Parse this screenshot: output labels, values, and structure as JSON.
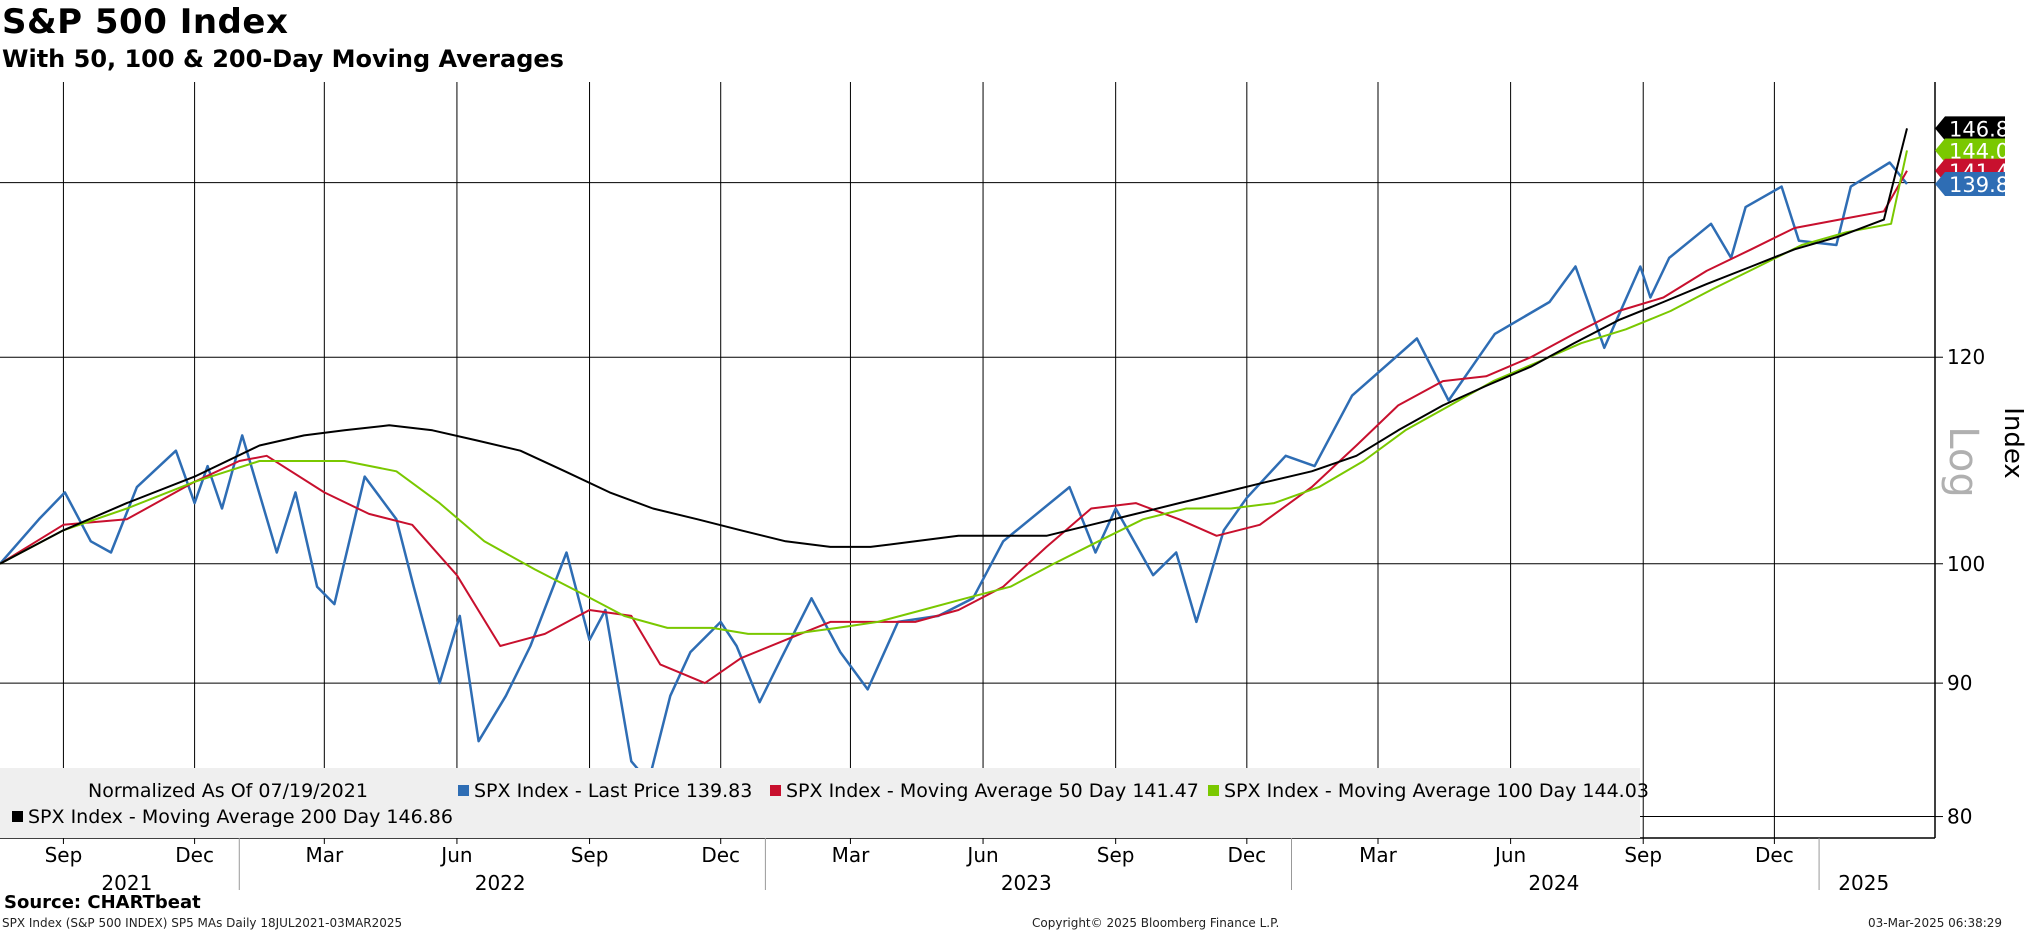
{
  "title": "S&P 500 Index",
  "subtitle": "With 50, 100 & 200-Day Moving Averages",
  "source": "Source: CHARTbeat",
  "footer": {
    "left": "SPX Index (S&P 500 INDEX) SP5 MAs  Daily 18JUL2021-03MAR2025",
    "center": "Copyright© 2025 Bloomberg Finance L.P.",
    "right": "03-Mar-2025 06:38:29"
  },
  "chart_data": {
    "type": "line",
    "scale": "log",
    "ylabel": "Index",
    "scale_label": "Log",
    "ylim": [
      78.5,
      153
    ],
    "yticks": [
      80,
      90,
      100,
      120
    ],
    "date_range": [
      "2021-07-19",
      "2025-03-03"
    ],
    "legend_note": "Normalized As Of 07/19/2021",
    "x_month_labels": [
      {
        "date": "2021-09-01",
        "label": "Sep"
      },
      {
        "date": "2021-12-01",
        "label": "Dec"
      },
      {
        "date": "2022-03-01",
        "label": "Mar"
      },
      {
        "date": "2022-06-01",
        "label": "Jun"
      },
      {
        "date": "2022-09-01",
        "label": "Sep"
      },
      {
        "date": "2022-12-01",
        "label": "Dec"
      },
      {
        "date": "2023-03-01",
        "label": "Mar"
      },
      {
        "date": "2023-06-01",
        "label": "Jun"
      },
      {
        "date": "2023-09-01",
        "label": "Sep"
      },
      {
        "date": "2023-12-01",
        "label": "Dec"
      },
      {
        "date": "2024-03-01",
        "label": "Mar"
      },
      {
        "date": "2024-06-01",
        "label": "Jun"
      },
      {
        "date": "2024-09-01",
        "label": "Sep"
      },
      {
        "date": "2024-12-01",
        "label": "Dec"
      }
    ],
    "x_year_labels": [
      {
        "date": "2021-10-15",
        "label": "2021"
      },
      {
        "date": "2022-07-01",
        "label": "2022"
      },
      {
        "date": "2023-07-01",
        "label": "2023"
      },
      {
        "date": "2024-07-01",
        "label": "2024"
      },
      {
        "date": "2025-02-01",
        "label": "2025"
      }
    ],
    "year_boundaries": [
      "2022-01-01",
      "2023-01-01",
      "2024-01-01",
      "2025-01-01"
    ],
    "series": [
      {
        "name": "SPX Index - Last Price",
        "last": "139.83",
        "color": "#2e6db4",
        "points": [
          [
            "2021-07-19",
            100
          ],
          [
            "2021-08-15",
            104
          ],
          [
            "2021-09-02",
            106.5
          ],
          [
            "2021-09-20",
            102
          ],
          [
            "2021-10-04",
            101
          ],
          [
            "2021-10-22",
            107
          ],
          [
            "2021-11-18",
            110.5
          ],
          [
            "2021-12-01",
            105.5
          ],
          [
            "2021-12-10",
            109
          ],
          [
            "2021-12-20",
            105
          ],
          [
            "2022-01-03",
            112
          ],
          [
            "2022-01-27",
            101
          ],
          [
            "2022-02-09",
            106.5
          ],
          [
            "2022-02-24",
            98
          ],
          [
            "2022-03-08",
            96.5
          ],
          [
            "2022-03-29",
            108
          ],
          [
            "2022-04-20",
            104
          ],
          [
            "2022-05-02",
            98
          ],
          [
            "2022-05-20",
            90
          ],
          [
            "2022-06-03",
            95.5
          ],
          [
            "2022-06-16",
            85.5
          ],
          [
            "2022-07-05",
            89
          ],
          [
            "2022-07-22",
            93
          ],
          [
            "2022-08-16",
            101
          ],
          [
            "2022-09-01",
            93.5
          ],
          [
            "2022-09-12",
            96
          ],
          [
            "2022-09-30",
            84
          ],
          [
            "2022-10-12",
            82.5
          ],
          [
            "2022-10-27",
            89
          ],
          [
            "2022-11-10",
            92.5
          ],
          [
            "2022-12-01",
            95
          ],
          [
            "2022-12-12",
            93
          ],
          [
            "2022-12-28",
            88.5
          ],
          [
            "2023-01-12",
            92
          ],
          [
            "2023-02-02",
            97
          ],
          [
            "2023-02-22",
            92.5
          ],
          [
            "2023-03-13",
            89.5
          ],
          [
            "2023-04-03",
            95
          ],
          [
            "2023-05-01",
            95.5
          ],
          [
            "2023-05-25",
            97
          ],
          [
            "2023-06-15",
            102
          ],
          [
            "2023-07-31",
            107
          ],
          [
            "2023-08-18",
            101
          ],
          [
            "2023-09-01",
            105
          ],
          [
            "2023-09-27",
            99
          ],
          [
            "2023-10-13",
            101
          ],
          [
            "2023-10-27",
            95
          ],
          [
            "2023-11-15",
            103
          ],
          [
            "2023-12-01",
            106
          ],
          [
            "2023-12-28",
            110
          ],
          [
            "2024-01-17",
            109
          ],
          [
            "2024-02-12",
            116
          ],
          [
            "2024-03-28",
            122
          ],
          [
            "2024-04-19",
            115.5
          ],
          [
            "2024-05-21",
            122.5
          ],
          [
            "2024-06-28",
            126
          ],
          [
            "2024-07-16",
            130
          ],
          [
            "2024-08-05",
            121
          ],
          [
            "2024-08-30",
            130
          ],
          [
            "2024-09-06",
            126.5
          ],
          [
            "2024-09-19",
            131
          ],
          [
            "2024-10-18",
            135
          ],
          [
            "2024-11-01",
            131
          ],
          [
            "2024-11-11",
            137
          ],
          [
            "2024-12-06",
            139.5
          ],
          [
            "2024-12-18",
            133
          ],
          [
            "2025-01-13",
            132.5
          ],
          [
            "2025-01-23",
            139.5
          ],
          [
            "2025-02-19",
            142.5
          ],
          [
            "2025-03-03",
            139.83
          ]
        ]
      },
      {
        "name": "SPX Index - Moving Average 50 Day",
        "last": "141.47",
        "color": "#c8102e",
        "points": [
          [
            "2021-07-19",
            100
          ],
          [
            "2021-09-01",
            103.5
          ],
          [
            "2021-10-15",
            104
          ],
          [
            "2021-12-01",
            107.5
          ],
          [
            "2022-01-01",
            109.5
          ],
          [
            "2022-01-20",
            110
          ],
          [
            "2022-03-01",
            106.5
          ],
          [
            "2022-04-01",
            104.5
          ],
          [
            "2022-05-01",
            103.5
          ],
          [
            "2022-06-01",
            99
          ],
          [
            "2022-07-01",
            93
          ],
          [
            "2022-08-01",
            94
          ],
          [
            "2022-09-01",
            96
          ],
          [
            "2022-09-30",
            95.5
          ],
          [
            "2022-10-20",
            91.5
          ],
          [
            "2022-11-20",
            90
          ],
          [
            "2022-12-15",
            92
          ],
          [
            "2023-01-15",
            93.5
          ],
          [
            "2023-02-15",
            95
          ],
          [
            "2023-03-15",
            95
          ],
          [
            "2023-04-15",
            95
          ],
          [
            "2023-05-15",
            96
          ],
          [
            "2023-06-15",
            98
          ],
          [
            "2023-07-15",
            101.5
          ],
          [
            "2023-08-15",
            105
          ],
          [
            "2023-09-15",
            105.5
          ],
          [
            "2023-10-15",
            104
          ],
          [
            "2023-11-10",
            102.5
          ],
          [
            "2023-12-10",
            103.5
          ],
          [
            "2024-01-15",
            107
          ],
          [
            "2024-02-15",
            111
          ],
          [
            "2024-03-15",
            115
          ],
          [
            "2024-04-15",
            117.5
          ],
          [
            "2024-05-15",
            118
          ],
          [
            "2024-06-15",
            120
          ],
          [
            "2024-07-15",
            122.5
          ],
          [
            "2024-08-15",
            125
          ],
          [
            "2024-09-15",
            126.5
          ],
          [
            "2024-10-15",
            129.5
          ],
          [
            "2024-11-15",
            132
          ],
          [
            "2024-12-15",
            134.5
          ],
          [
            "2025-01-15",
            135.5
          ],
          [
            "2025-02-15",
            136.5
          ],
          [
            "2025-03-03",
            141.47
          ]
        ]
      },
      {
        "name": "SPX Index - Moving Average 100 Day",
        "last": "144.03",
        "color": "#7ac800",
        "points": [
          [
            "2021-07-19",
            100
          ],
          [
            "2021-09-01",
            103
          ],
          [
            "2021-10-15",
            105
          ],
          [
            "2021-12-01",
            107.5
          ],
          [
            "2022-01-15",
            109.5
          ],
          [
            "2022-02-15",
            109.5
          ],
          [
            "2022-03-15",
            109.5
          ],
          [
            "2022-04-20",
            108.5
          ],
          [
            "2022-05-20",
            105.5
          ],
          [
            "2022-06-20",
            102
          ],
          [
            "2022-07-25",
            99.5
          ],
          [
            "2022-08-25",
            97.5
          ],
          [
            "2022-09-25",
            95.5
          ],
          [
            "2022-10-25",
            94.5
          ],
          [
            "2022-11-25",
            94.5
          ],
          [
            "2022-12-20",
            94
          ],
          [
            "2023-01-20",
            94
          ],
          [
            "2023-02-20",
            94.5
          ],
          [
            "2023-03-20",
            95
          ],
          [
            "2023-04-20",
            96
          ],
          [
            "2023-05-20",
            97
          ],
          [
            "2023-06-20",
            98
          ],
          [
            "2023-07-20",
            100
          ],
          [
            "2023-08-20",
            102
          ],
          [
            "2023-09-20",
            104
          ],
          [
            "2023-10-20",
            105
          ],
          [
            "2023-11-20",
            105
          ],
          [
            "2023-12-20",
            105.5
          ],
          [
            "2024-01-20",
            107
          ],
          [
            "2024-02-20",
            109.5
          ],
          [
            "2024-03-20",
            112.5
          ],
          [
            "2024-04-20",
            115
          ],
          [
            "2024-05-20",
            117.5
          ],
          [
            "2024-06-20",
            119.5
          ],
          [
            "2024-07-20",
            121.5
          ],
          [
            "2024-08-20",
            123
          ],
          [
            "2024-09-20",
            125
          ],
          [
            "2024-10-20",
            127.5
          ],
          [
            "2024-11-20",
            130
          ],
          [
            "2024-12-20",
            132.5
          ],
          [
            "2025-01-20",
            134
          ],
          [
            "2025-02-20",
            135
          ],
          [
            "2025-03-03",
            144.03
          ]
        ]
      },
      {
        "name": "SPX Index - Moving Average 200 Day",
        "last": "146.86",
        "color": "#000000",
        "points": [
          [
            "2021-07-19",
            100
          ],
          [
            "2021-09-01",
            103
          ],
          [
            "2021-10-15",
            105.5
          ],
          [
            "2021-12-01",
            108
          ],
          [
            "2022-01-15",
            111
          ],
          [
            "2022-02-15",
            112
          ],
          [
            "2022-03-15",
            112.5
          ],
          [
            "2022-04-15",
            113
          ],
          [
            "2022-05-15",
            112.5
          ],
          [
            "2022-06-15",
            111.5
          ],
          [
            "2022-07-15",
            110.5
          ],
          [
            "2022-08-15",
            108.5
          ],
          [
            "2022-09-15",
            106.5
          ],
          [
            "2022-10-15",
            105
          ],
          [
            "2022-11-15",
            104
          ],
          [
            "2022-12-15",
            103
          ],
          [
            "2023-01-15",
            102
          ],
          [
            "2023-02-15",
            101.5
          ],
          [
            "2023-03-15",
            101.5
          ],
          [
            "2023-04-15",
            102
          ],
          [
            "2023-05-15",
            102.5
          ],
          [
            "2023-06-15",
            102.5
          ],
          [
            "2023-07-15",
            102.5
          ],
          [
            "2023-08-15",
            103.5
          ],
          [
            "2023-09-15",
            104.5
          ],
          [
            "2023-10-15",
            105.5
          ],
          [
            "2023-11-15",
            106.5
          ],
          [
            "2023-12-15",
            107.5
          ],
          [
            "2024-01-15",
            108.5
          ],
          [
            "2024-02-15",
            110
          ],
          [
            "2024-03-15",
            112.5
          ],
          [
            "2024-04-15",
            115
          ],
          [
            "2024-05-15",
            117
          ],
          [
            "2024-06-15",
            119
          ],
          [
            "2024-07-15",
            121.5
          ],
          [
            "2024-08-15",
            124
          ],
          [
            "2024-09-15",
            126
          ],
          [
            "2024-10-15",
            128
          ],
          [
            "2024-11-15",
            130
          ],
          [
            "2024-12-15",
            132
          ],
          [
            "2025-01-15",
            133.5
          ],
          [
            "2025-02-15",
            135.5
          ],
          [
            "2025-03-03",
            146.86
          ]
        ]
      }
    ]
  }
}
